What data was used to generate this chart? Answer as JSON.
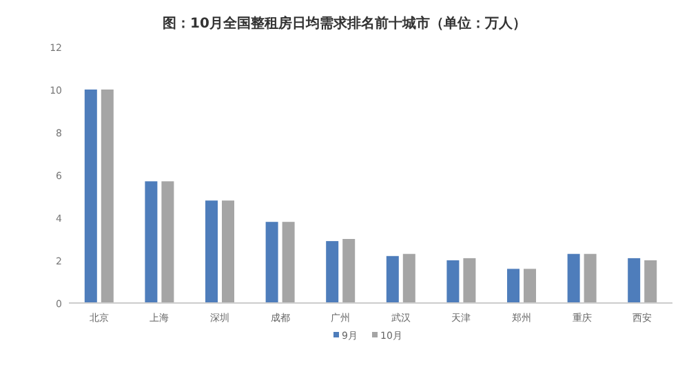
{
  "chart_data": {
    "type": "bar",
    "title": "图：10月全国整租房日均需求排名前十城市（单位：万人）",
    "categories": [
      "北京",
      "上海",
      "深圳",
      "成都",
      "广州",
      "武汉",
      "天津",
      "郑州",
      "重庆",
      "西安"
    ],
    "series": [
      {
        "name": "9月",
        "color": "#4e7dbb",
        "values": [
          10.0,
          5.7,
          4.8,
          3.8,
          2.9,
          2.2,
          2.0,
          1.6,
          2.3,
          2.1
        ]
      },
      {
        "name": "10月",
        "color": "#a5a5a5",
        "values": [
          10.0,
          5.7,
          4.8,
          3.8,
          3.0,
          2.3,
          2.1,
          1.6,
          2.3,
          2.0
        ]
      }
    ],
    "ylim": [
      0,
      12
    ],
    "yticks": [
      0,
      2,
      4,
      6,
      8,
      10,
      12
    ],
    "grid": false,
    "legend": "bottom"
  }
}
